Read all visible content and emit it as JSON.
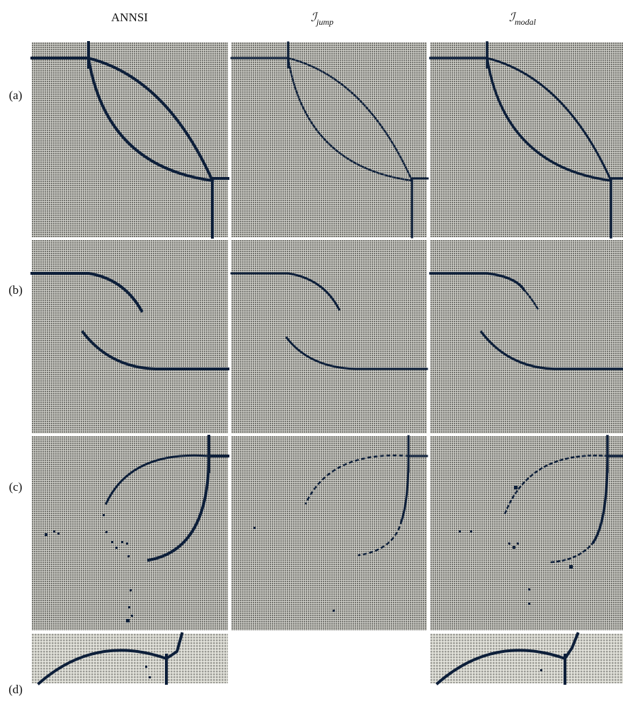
{
  "columns": [
    {
      "label": "ANNSI"
    },
    {
      "symbol": "ℐ",
      "subscript": "jump"
    },
    {
      "symbol": "ℐ",
      "subscript": "modal"
    }
  ],
  "rows": [
    {
      "label": "(a)"
    },
    {
      "label": "(b)"
    },
    {
      "label": "(c)"
    },
    {
      "label": "(d)"
    }
  ]
}
